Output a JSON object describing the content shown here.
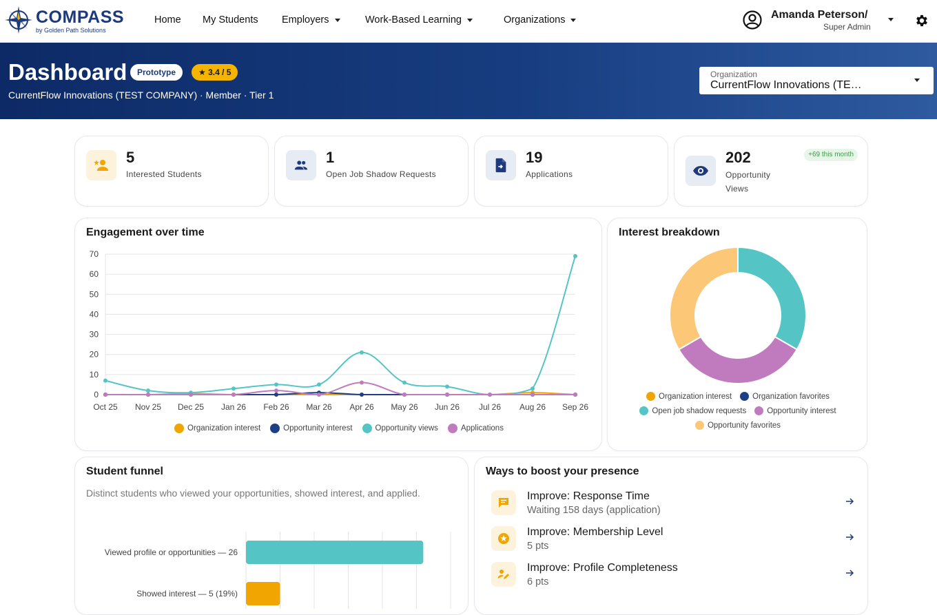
{
  "nav": {
    "logo_word": "COMPASS",
    "logo_sub": "by Golden Path Solutions",
    "items": [
      {
        "label": "Home"
      },
      {
        "label": "My Students"
      },
      {
        "label": "Employers"
      },
      {
        "label": "Work-Based Learning"
      },
      {
        "label": "Organizations"
      }
    ],
    "user_name": "Amanda Peterson/",
    "user_role": "Super Admin"
  },
  "banner": {
    "title": "Dashboard",
    "badge_prototype": "Prototype",
    "rating": "3.4 / 5",
    "subtitle": "CurrentFlow Innovations (TEST COMPANY) · Member · Tier 1",
    "org_label": "Organization",
    "org_value": "CurrentFlow Innovations (TE…"
  },
  "stats": [
    {
      "value": "5",
      "label": "Interested Students",
      "icon": "person-star-icon"
    },
    {
      "value": "1",
      "label": "Open Job Shadow Requests",
      "icon": "group-icon"
    },
    {
      "value": "19",
      "label": "Applications",
      "icon": "document-arrow-icon"
    },
    {
      "value": "202",
      "label": "Opportunity",
      "label2": "Views",
      "badge": "+69 this month",
      "icon": "eye-icon"
    }
  ],
  "colors": {
    "accent_dark": "#1e3a7a",
    "teal": "#55c4c4",
    "orange": "#f0a500",
    "navy": "#1d3f86",
    "purple": "#c07bbf",
    "peach": "#fcc878"
  },
  "engagement": {
    "title": "Engagement over time",
    "chart_data": {
      "type": "line",
      "x": [
        "Oct 25",
        "Nov 25",
        "Dec 25",
        "Jan 26",
        "Feb 26",
        "Mar 26",
        "Apr 26",
        "May 26",
        "Jun 26",
        "Jul 26",
        "Aug 26",
        "Sep 26"
      ],
      "ylim": [
        0,
        70
      ],
      "yticks": [
        0,
        10,
        20,
        30,
        40,
        50,
        60,
        70
      ],
      "grid": true,
      "legend": "bottom",
      "series": [
        {
          "name": "Organization interest",
          "color": "#f0a500",
          "values": [
            0,
            0,
            0.5,
            0,
            0,
            0,
            0,
            0,
            0,
            0,
            1,
            0
          ]
        },
        {
          "name": "Opportunity interest",
          "color": "#1d3f86",
          "values": [
            0,
            0,
            0,
            0,
            0,
            1,
            0,
            0,
            0,
            0,
            0,
            0
          ]
        },
        {
          "name": "Opportunity views",
          "color": "#55c4c4",
          "values": [
            7,
            2,
            1,
            3,
            5,
            5,
            21,
            6,
            4,
            0,
            3,
            69
          ]
        },
        {
          "name": "Applications",
          "color": "#c07bbf",
          "values": [
            0,
            0,
            0,
            0,
            2,
            0,
            6,
            0,
            0,
            0,
            0,
            0
          ]
        }
      ]
    }
  },
  "interest": {
    "title": "Interest breakdown",
    "chart_data": {
      "type": "pie",
      "donut": true,
      "legend": "bottom",
      "slices": [
        {
          "name": "Organization interest",
          "color": "#f0a500",
          "value": 0
        },
        {
          "name": "Organization favorites",
          "color": "#1d3f86",
          "value": 0
        },
        {
          "name": "Open job shadow requests",
          "color": "#55c4c4",
          "value": 1
        },
        {
          "name": "Opportunity interest",
          "color": "#c07bbf",
          "value": 1
        },
        {
          "name": "Opportunity favorites",
          "color": "#fcc878",
          "value": 1
        }
      ]
    }
  },
  "funnel": {
    "title": "Student funnel",
    "description": "Distinct students who viewed your opportunities, showed interest, and applied.",
    "chart_data": {
      "type": "bar",
      "orientation": "horizontal",
      "categories": [
        "Viewed profile or opportunities — 26",
        "Showed interest — 5 (19%)"
      ],
      "values": [
        26,
        5
      ],
      "colors": [
        "#55c4c4",
        "#f0a500"
      ],
      "xlim": [
        0,
        30
      ],
      "grid": true
    }
  },
  "boost": {
    "title": "Ways to boost your presence",
    "items": [
      {
        "title": "Improve: Response Time",
        "sub": "Waiting 158 days (application)",
        "icon": "chat-icon"
      },
      {
        "title": "Improve: Membership Level",
        "sub": "5 pts",
        "icon": "star-badge-icon"
      },
      {
        "title": "Improve: Profile Completeness",
        "sub": "6 pts",
        "icon": "pencil-person-icon"
      }
    ]
  }
}
